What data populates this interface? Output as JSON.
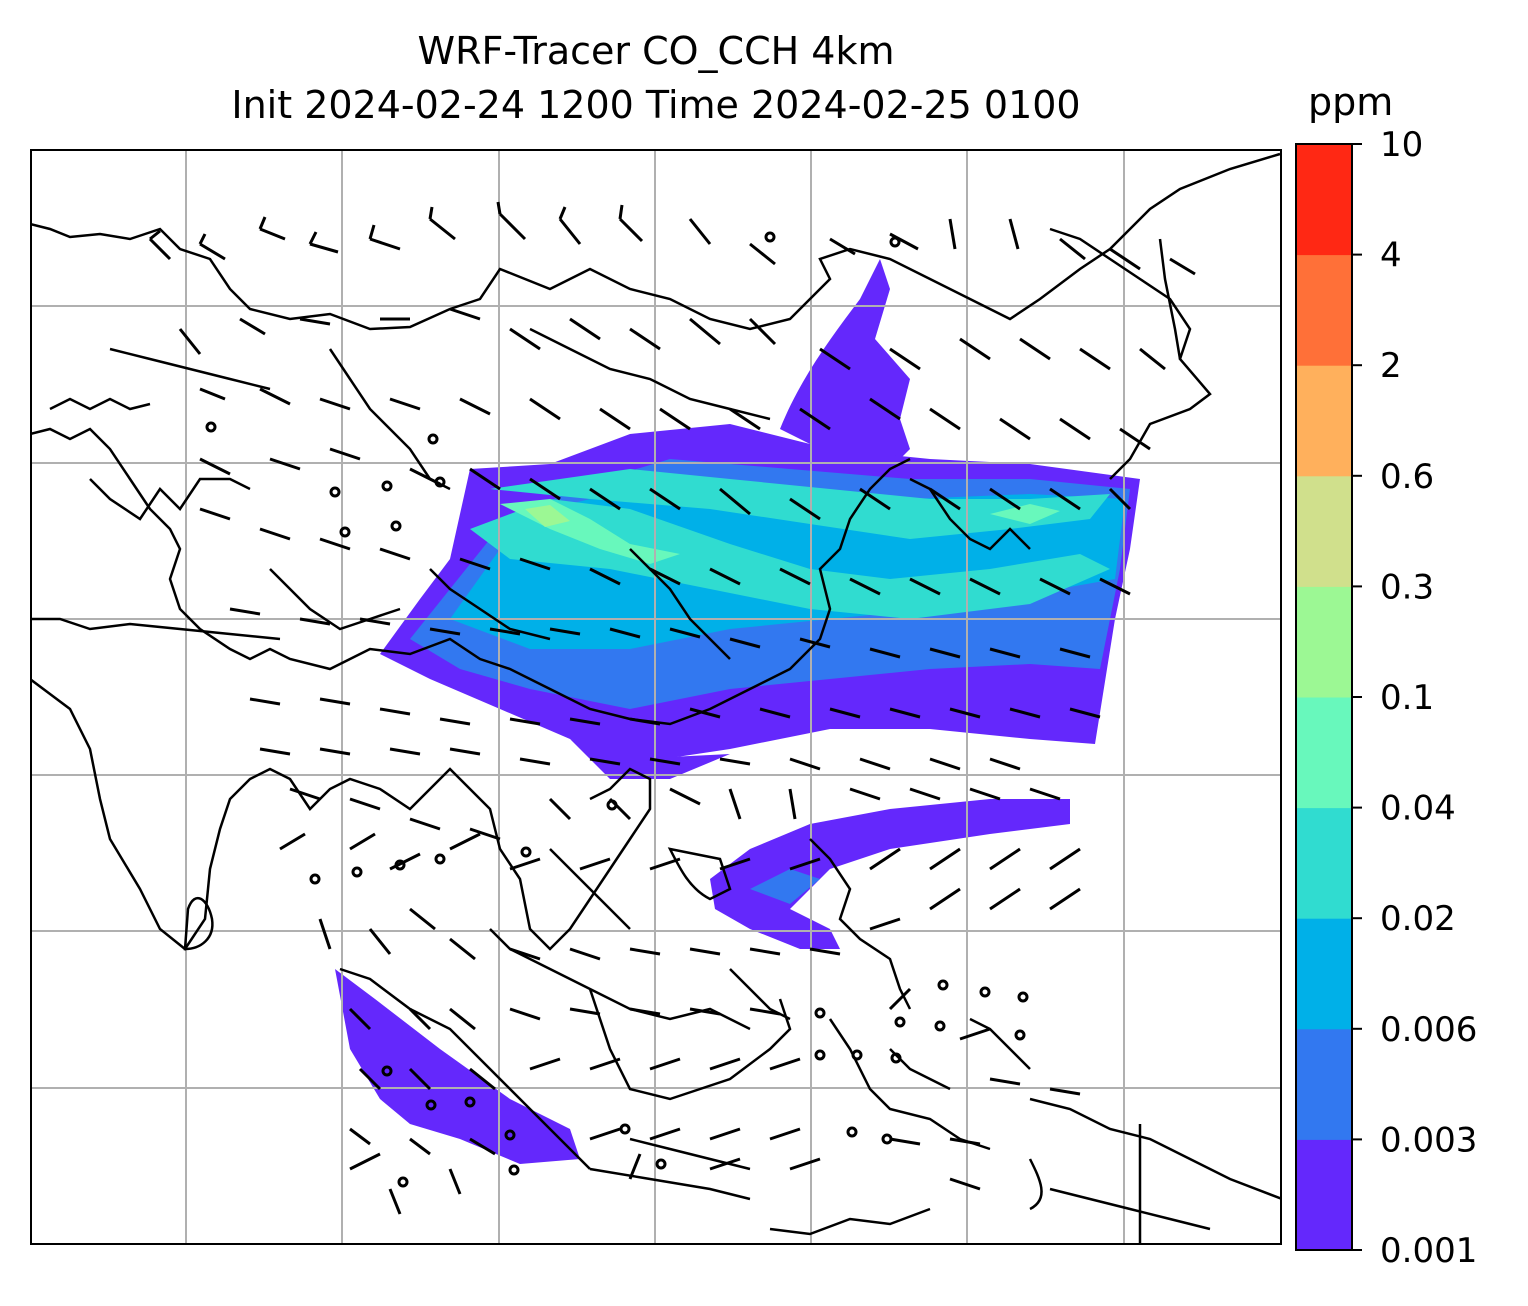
{
  "title": {
    "line1": "WRF-Tracer CO_CCH 4km",
    "line2": "Init 2024-02-24 1200 Time 2024-02-25 0100"
  },
  "colorbar": {
    "unit": "ppm",
    "levels": [
      "0.001",
      "0.003",
      "0.006",
      "0.02",
      "0.04",
      "0.1",
      "0.3",
      "0.6",
      "2",
      "4",
      "10"
    ],
    "colors": [
      "#6428fc",
      "#3278f0",
      "#00b0e8",
      "#30dcd0",
      "#68f8bc",
      "#9cf894",
      "#d0e08c",
      "#ffb05c",
      "#ff7038",
      "#ff2814"
    ]
  },
  "map": {
    "gridlines": true,
    "features": [
      "coastlines",
      "country-borders",
      "wind-barbs",
      "calm-circles",
      "tracer-shading"
    ]
  }
}
